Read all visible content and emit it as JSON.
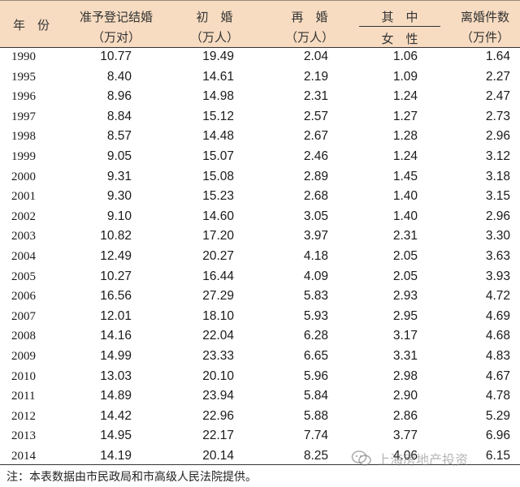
{
  "header": {
    "year_label": "年　份",
    "col1_label": "准予登记结婚",
    "col1_unit": "（万对）",
    "col2_label": "初　婚",
    "col2_unit": "（万人）",
    "col3_label": "再　婚",
    "col3_unit": "（万人）",
    "col4_label": "其　中",
    "col4_sub": "女　性",
    "col5_label": "离婚件数",
    "col5_unit": "（万件）"
  },
  "rows": [
    {
      "year": "1990",
      "marriages": "10.77",
      "first": "19.49",
      "re": "2.04",
      "re_female": "1.06",
      "divorces": "1.64"
    },
    {
      "year": "1995",
      "marriages": "8.40",
      "first": "14.61",
      "re": "2.19",
      "re_female": "1.09",
      "divorces": "2.27"
    },
    {
      "year": "1996",
      "marriages": "8.96",
      "first": "14.98",
      "re": "2.31",
      "re_female": "1.24",
      "divorces": "2.47"
    },
    {
      "year": "1997",
      "marriages": "8.84",
      "first": "15.12",
      "re": "2.57",
      "re_female": "1.27",
      "divorces": "2.73"
    },
    {
      "year": "1998",
      "marriages": "8.57",
      "first": "14.48",
      "re": "2.67",
      "re_female": "1.28",
      "divorces": "2.96"
    },
    {
      "year": "1999",
      "marriages": "9.05",
      "first": "15.07",
      "re": "2.46",
      "re_female": "1.24",
      "divorces": "3.12"
    },
    {
      "year": "2000",
      "marriages": "9.31",
      "first": "15.08",
      "re": "2.89",
      "re_female": "1.45",
      "divorces": "3.18"
    },
    {
      "year": "2001",
      "marriages": "9.30",
      "first": "15.23",
      "re": "2.68",
      "re_female": "1.40",
      "divorces": "3.15"
    },
    {
      "year": "2002",
      "marriages": "9.10",
      "first": "14.60",
      "re": "3.05",
      "re_female": "1.40",
      "divorces": "2.96"
    },
    {
      "year": "2003",
      "marriages": "10.82",
      "first": "17.20",
      "re": "3.97",
      "re_female": "2.31",
      "divorces": "3.30"
    },
    {
      "year": "2004",
      "marriages": "12.49",
      "first": "20.27",
      "re": "4.18",
      "re_female": "2.05",
      "divorces": "3.63"
    },
    {
      "year": "2005",
      "marriages": "10.27",
      "first": "16.44",
      "re": "4.09",
      "re_female": "2.05",
      "divorces": "3.93"
    },
    {
      "year": "2006",
      "marriages": "16.56",
      "first": "27.29",
      "re": "5.83",
      "re_female": "2.93",
      "divorces": "4.72"
    },
    {
      "year": "2007",
      "marriages": "12.01",
      "first": "18.10",
      "re": "5.93",
      "re_female": "2.95",
      "divorces": "4.69"
    },
    {
      "year": "2008",
      "marriages": "14.16",
      "first": "22.04",
      "re": "6.28",
      "re_female": "3.17",
      "divorces": "4.68"
    },
    {
      "year": "2009",
      "marriages": "14.99",
      "first": "23.33",
      "re": "6.65",
      "re_female": "3.31",
      "divorces": "4.83"
    },
    {
      "year": "2010",
      "marriages": "13.03",
      "first": "20.10",
      "re": "5.96",
      "re_female": "2.98",
      "divorces": "4.67"
    },
    {
      "year": "2011",
      "marriages": "14.89",
      "first": "23.94",
      "re": "5.84",
      "re_female": "2.90",
      "divorces": "4.78"
    },
    {
      "year": "2012",
      "marriages": "14.42",
      "first": "22.96",
      "re": "5.88",
      "re_female": "2.86",
      "divorces": "5.29"
    },
    {
      "year": "2013",
      "marriages": "14.95",
      "first": "22.17",
      "re": "7.74",
      "re_female": "3.77",
      "divorces": "6.96"
    },
    {
      "year": "2014",
      "marriages": "14.19",
      "first": "20.14",
      "re": "8.25",
      "re_female": "4.06",
      "divorces": "6.15"
    }
  ],
  "footnote": "注：本表数据由市民政局和市高级人民法院提供。",
  "watermark": {
    "text": "上海房地产投资",
    "icon": "wechat-icon"
  },
  "colors": {
    "header_bg": "#f7dcc2",
    "rule": "#333333"
  }
}
